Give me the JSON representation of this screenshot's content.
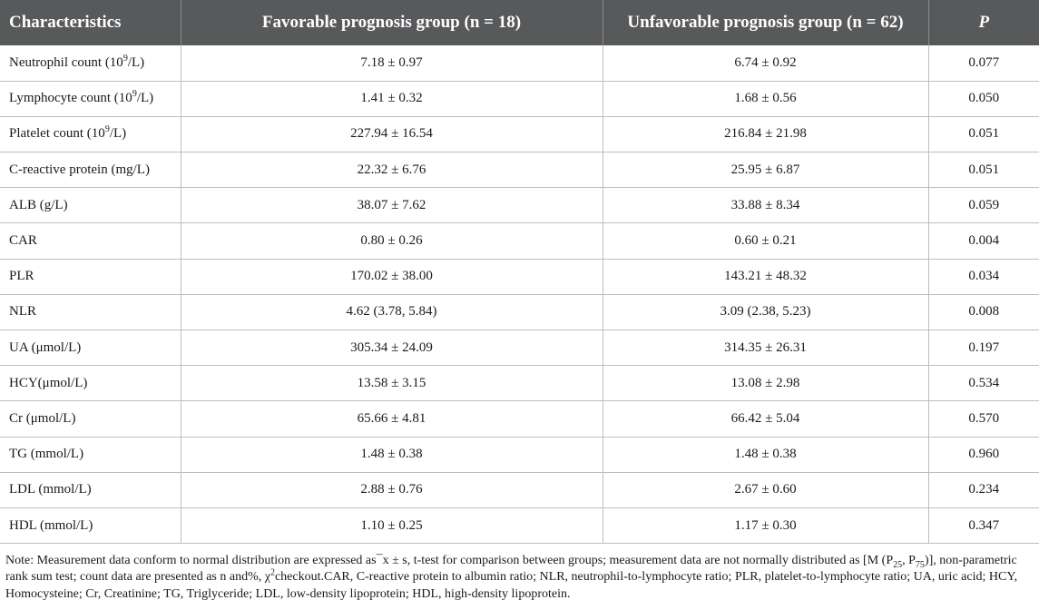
{
  "table": {
    "headers": {
      "characteristics": "Characteristics",
      "favorable": "Favorable prognosis group (n = 18)",
      "unfavorable": "Unfavorable prognosis group (n = 62)",
      "p": "P"
    },
    "rows": [
      {
        "name_main": "Neutrophil count (10",
        "name_sup": "9",
        "name_tail": "/L)",
        "fav": "7.18 ± 0.97",
        "unfav": "6.74 ± 0.92",
        "p": "0.077"
      },
      {
        "name_main": "Lymphocyte count (10",
        "name_sup": "9",
        "name_tail": "/L)",
        "fav": "1.41 ± 0.32",
        "unfav": "1.68 ± 0.56",
        "p": "0.050"
      },
      {
        "name_main": "Platelet count (10",
        "name_sup": "9",
        "name_tail": "/L)",
        "fav": "227.94 ± 16.54",
        "unfav": "216.84 ± 21.98",
        "p": "0.051"
      },
      {
        "name_main": "C-reactive protein (mg/L)",
        "name_sup": "",
        "name_tail": "",
        "fav": "22.32 ± 6.76",
        "unfav": "25.95 ± 6.87",
        "p": "0.051"
      },
      {
        "name_main": "ALB (g/L)",
        "name_sup": "",
        "name_tail": "",
        "fav": "38.07 ± 7.62",
        "unfav": "33.88 ± 8.34",
        "p": "0.059"
      },
      {
        "name_main": "CAR",
        "name_sup": "",
        "name_tail": "",
        "fav": "0.80 ± 0.26",
        "unfav": "0.60 ± 0.21",
        "p": "0.004"
      },
      {
        "name_main": "PLR",
        "name_sup": "",
        "name_tail": "",
        "fav": "170.02 ± 38.00",
        "unfav": "143.21 ± 48.32",
        "p": "0.034"
      },
      {
        "name_main": "NLR",
        "name_sup": "",
        "name_tail": "",
        "fav": "4.62 (3.78, 5.84)",
        "unfav": "3.09 (2.38, 5.23)",
        "p": "0.008"
      },
      {
        "name_main": "UA (μmol/L)",
        "name_sup": "",
        "name_tail": "",
        "fav": "305.34 ± 24.09",
        "unfav": "314.35 ± 26.31",
        "p": "0.197"
      },
      {
        "name_main": "HCY(μmol/L)",
        "name_sup": "",
        "name_tail": "",
        "fav": "13.58 ± 3.15",
        "unfav": "13.08 ± 2.98",
        "p": "0.534"
      },
      {
        "name_main": "Cr (μmol/L)",
        "name_sup": "",
        "name_tail": "",
        "fav": "65.66 ± 4.81",
        "unfav": "66.42 ± 5.04",
        "p": "0.570"
      },
      {
        "name_main": "TG (mmol/L)",
        "name_sup": "",
        "name_tail": "",
        "fav": "1.48 ± 0.38",
        "unfav": "1.48 ± 0.38",
        "p": "0.960"
      },
      {
        "name_main": "LDL (mmol/L)",
        "name_sup": "",
        "name_tail": "",
        "fav": "2.88 ± 0.76",
        "unfav": "2.67 ± 0.60",
        "p": "0.234"
      },
      {
        "name_main": "HDL (mmol/L)",
        "name_sup": "",
        "name_tail": "",
        "fav": "1.10 ± 0.25",
        "unfav": "1.17 ± 0.30",
        "p": "0.347"
      }
    ]
  },
  "note": {
    "part1": "Note: Measurement data conform to normal distribution are expressed as",
    "xbar": "¯x ± s",
    "part2": ", t-test for comparison between groups; measurement data are not normally distributed as [M (P",
    "sub1": "25",
    "part3": ", P",
    "sub2": "75",
    "part4": ")], non-parametric rank sum test; count data are presented as n and%, χ",
    "sup1": "2",
    "part5": "checkout.CAR, C-reactive protein to albumin ratio; NLR, neutrophil-to-lymphocyte ratio; PLR, platelet-to-lymphocyte ratio; UA, uric acid; HCY, Homocysteine; Cr, Creatinine; TG, Triglyceride; LDL, low-density lipoprotein; HDL, high-density lipoprotein."
  }
}
